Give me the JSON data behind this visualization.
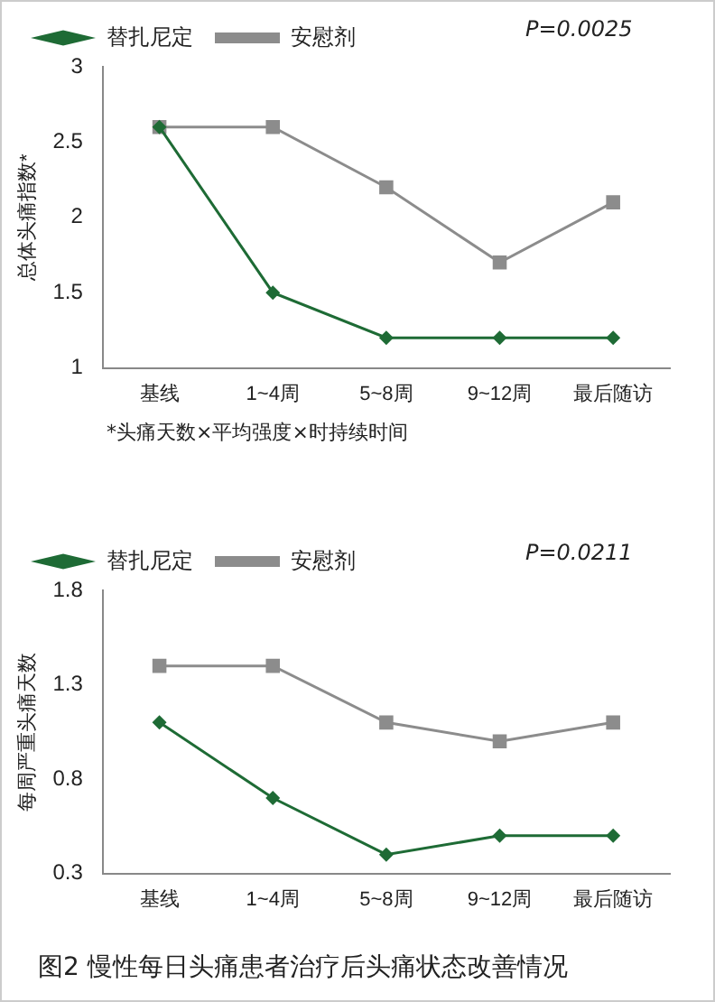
{
  "chart_data": [
    {
      "type": "line",
      "ylabel": "总体头痛指数*",
      "categories": [
        "基线",
        "1~4周",
        "5~8周",
        "9~12周",
        "最后随访"
      ],
      "series": [
        {
          "name": "替扎尼定",
          "color": "#1e6b35",
          "values": [
            2.6,
            1.5,
            1.2,
            1.2,
            1.2
          ],
          "marker": "diamond"
        },
        {
          "name": "安慰剂",
          "color": "#8c8c8c",
          "values": [
            2.6,
            2.6,
            2.2,
            1.7,
            2.1
          ],
          "marker": "square"
        }
      ],
      "ylim": [
        1,
        3
      ],
      "yticks": [
        1,
        1.5,
        2,
        2.5,
        3
      ],
      "grid": false,
      "legend": "top",
      "annotations": [
        "P=0.0025",
        "*头痛天数×平均强度×时持续时间"
      ]
    },
    {
      "type": "line",
      "ylabel": "每周严重头痛天数",
      "categories": [
        "基线",
        "1~4周",
        "5~8周",
        "9~12周",
        "最后随访"
      ],
      "series": [
        {
          "name": "替扎尼定",
          "color": "#1e6b35",
          "values": [
            1.1,
            0.7,
            0.4,
            0.5,
            0.5
          ],
          "marker": "diamond"
        },
        {
          "name": "安慰剂",
          "color": "#8c8c8c",
          "values": [
            1.4,
            1.4,
            1.1,
            1.0,
            1.1
          ],
          "marker": "square"
        }
      ],
      "ylim": [
        0.3,
        1.8
      ],
      "yticks": [
        0.3,
        0.8,
        1.3,
        1.8
      ],
      "grid": false,
      "legend": "top",
      "annotations": [
        "P=0.0211",
        "图2 慢性每日头痛患者治疗后头痛状态改善情况"
      ]
    }
  ]
}
